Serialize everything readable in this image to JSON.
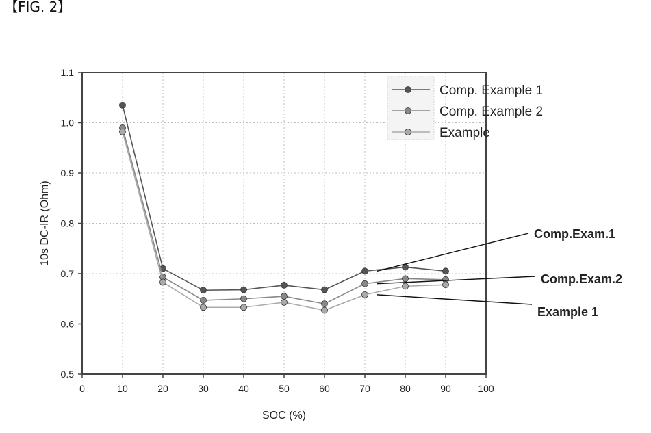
{
  "figure_label": "【FIG. 2】",
  "chart_data": {
    "type": "line",
    "title": "",
    "xlabel": "SOC (%)",
    "ylabel": "10s DC-IR (Ohm)",
    "xlim": [
      0,
      100
    ],
    "ylim": [
      0.5,
      1.1
    ],
    "x_ticks": [
      0,
      10,
      20,
      30,
      40,
      50,
      60,
      70,
      80,
      90,
      100
    ],
    "y_ticks": [
      0.5,
      0.6,
      0.7,
      0.8,
      0.9,
      1.0,
      1.1
    ],
    "x_tick_labels": [
      "0",
      "10",
      "20",
      "30",
      "40",
      "50",
      "60",
      "70",
      "80",
      "90",
      "100"
    ],
    "y_tick_labels": [
      "0.5",
      "0.6",
      "0.7",
      "0.8",
      "0.9",
      "1.0",
      "1.1"
    ],
    "grid": true,
    "legend_position": "top-right",
    "x": [
      10,
      20,
      30,
      40,
      50,
      60,
      70,
      80,
      90
    ],
    "series": [
      {
        "name": "Comp. Example 1",
        "color": "#555555",
        "values": [
          1.035,
          0.71,
          0.667,
          0.668,
          0.677,
          0.668,
          0.705,
          0.713,
          0.705
        ]
      },
      {
        "name": "Comp. Example 2",
        "color": "#888888",
        "values": [
          0.99,
          0.693,
          0.647,
          0.65,
          0.655,
          0.64,
          0.68,
          0.69,
          0.688
        ]
      },
      {
        "name": "Example",
        "color": "#aaaaaa",
        "values": [
          0.982,
          0.683,
          0.633,
          0.633,
          0.643,
          0.627,
          0.658,
          0.675,
          0.678
        ]
      }
    ],
    "annotations": [
      {
        "text": "Comp.Exam.1",
        "points_to": {
          "x": 70,
          "y": 0.705
        }
      },
      {
        "text": "Comp.Exam.2",
        "points_to": {
          "x": 70,
          "y": 0.68
        }
      },
      {
        "text": "Example 1",
        "points_to": {
          "x": 70,
          "y": 0.658
        }
      }
    ]
  }
}
